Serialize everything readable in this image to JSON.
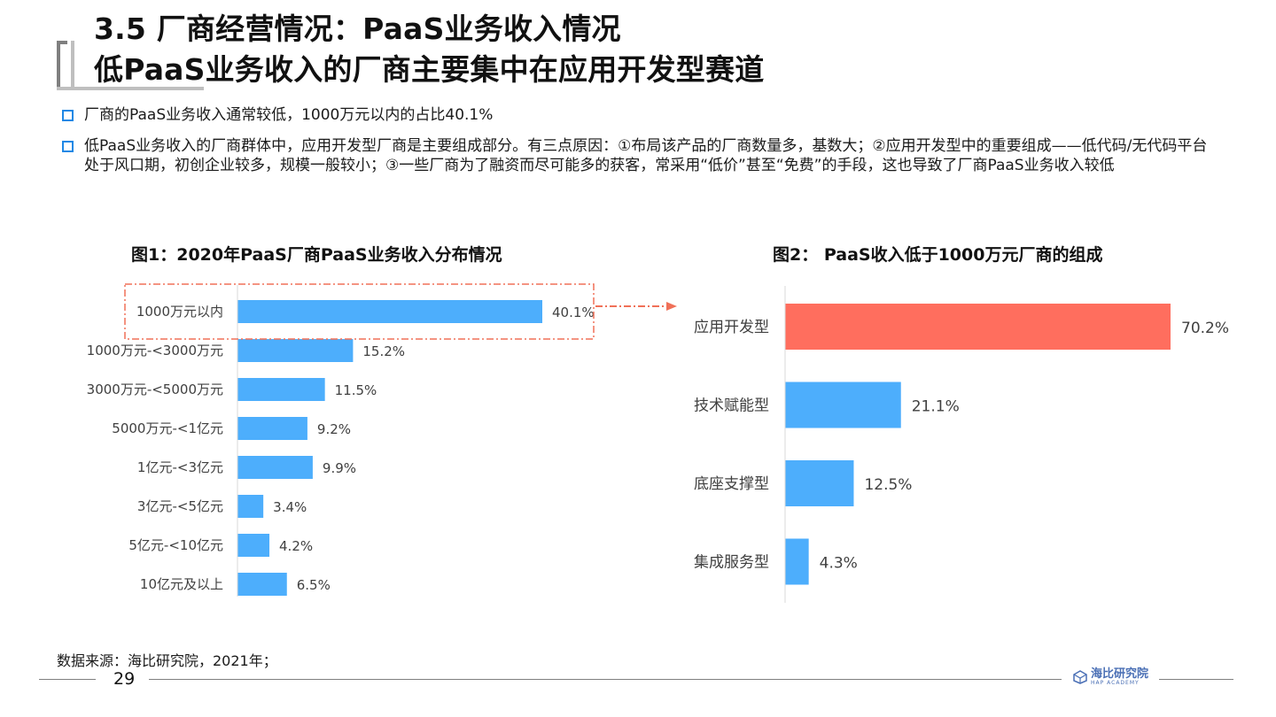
{
  "title": {
    "line1": "3.5 厂商经营情况：PaaS业务收入情况",
    "line2": "低PaaS业务收入的厂商主要集中在应用开发型赛道"
  },
  "bullets": [
    "厂商的PaaS业务收入通常较低，1000万元以内的占比40.1%",
    "低PaaS业务收入的厂商群体中，应用开发型厂商是主要组成部分。有三点原因：①布局该产品的厂商数量多，基数大；②应用开发型中的重要组成——低代码/无代码平台处于风口期，初创企业较多，规模一般较小；③一些厂商为了融资而尽可能多的获客，常采用“低价”甚至“免费”的手段，这也导致了厂商PaaS业务收入较低"
  ],
  "colors": {
    "bar_blue": "#4daefc",
    "bar_highlight": "#ff6e5e",
    "bullet_marker": "#1e88e5",
    "callout_dash": "#f07058"
  },
  "chart_data": [
    {
      "type": "bar",
      "orientation": "horizontal",
      "title": "图1：2020年PaaS厂商PaaS业务收入分布情况",
      "categories": [
        "1000万元以内",
        "1000万元-<3000万元",
        "3000万元-<5000万元",
        "5000万元-<1亿元",
        "1亿元-<3亿元",
        "3亿元-<5亿元",
        "5亿元-<10亿元",
        "10亿元及以上"
      ],
      "values": [
        40.1,
        15.2,
        11.5,
        9.2,
        9.9,
        3.4,
        4.2,
        6.5
      ],
      "value_labels": [
        "40.1%",
        "15.2%",
        "11.5%",
        "9.2%",
        "9.9%",
        "3.4%",
        "4.2%",
        "6.5%"
      ],
      "unit": "%",
      "highlight_index": 0,
      "xlim": [
        0,
        40.1
      ]
    },
    {
      "type": "bar",
      "orientation": "horizontal",
      "title": "图2： PaaS收入低于1000万元厂商的组成",
      "categories": [
        "应用开发型",
        "技术赋能型",
        "底座支撑型",
        "集成服务型"
      ],
      "values": [
        70.2,
        21.1,
        12.5,
        4.3
      ],
      "value_labels": [
        "70.2%",
        "21.1%",
        "12.5%",
        "4.3%"
      ],
      "unit": "%",
      "highlight_index": 0,
      "xlim": [
        0,
        70.2
      ]
    }
  ],
  "footer": {
    "source": "数据来源：海比研究院，2021年；",
    "page_number": "29",
    "logo_text": "海比研究院",
    "logo_sub": "HAP ACADEMY"
  }
}
